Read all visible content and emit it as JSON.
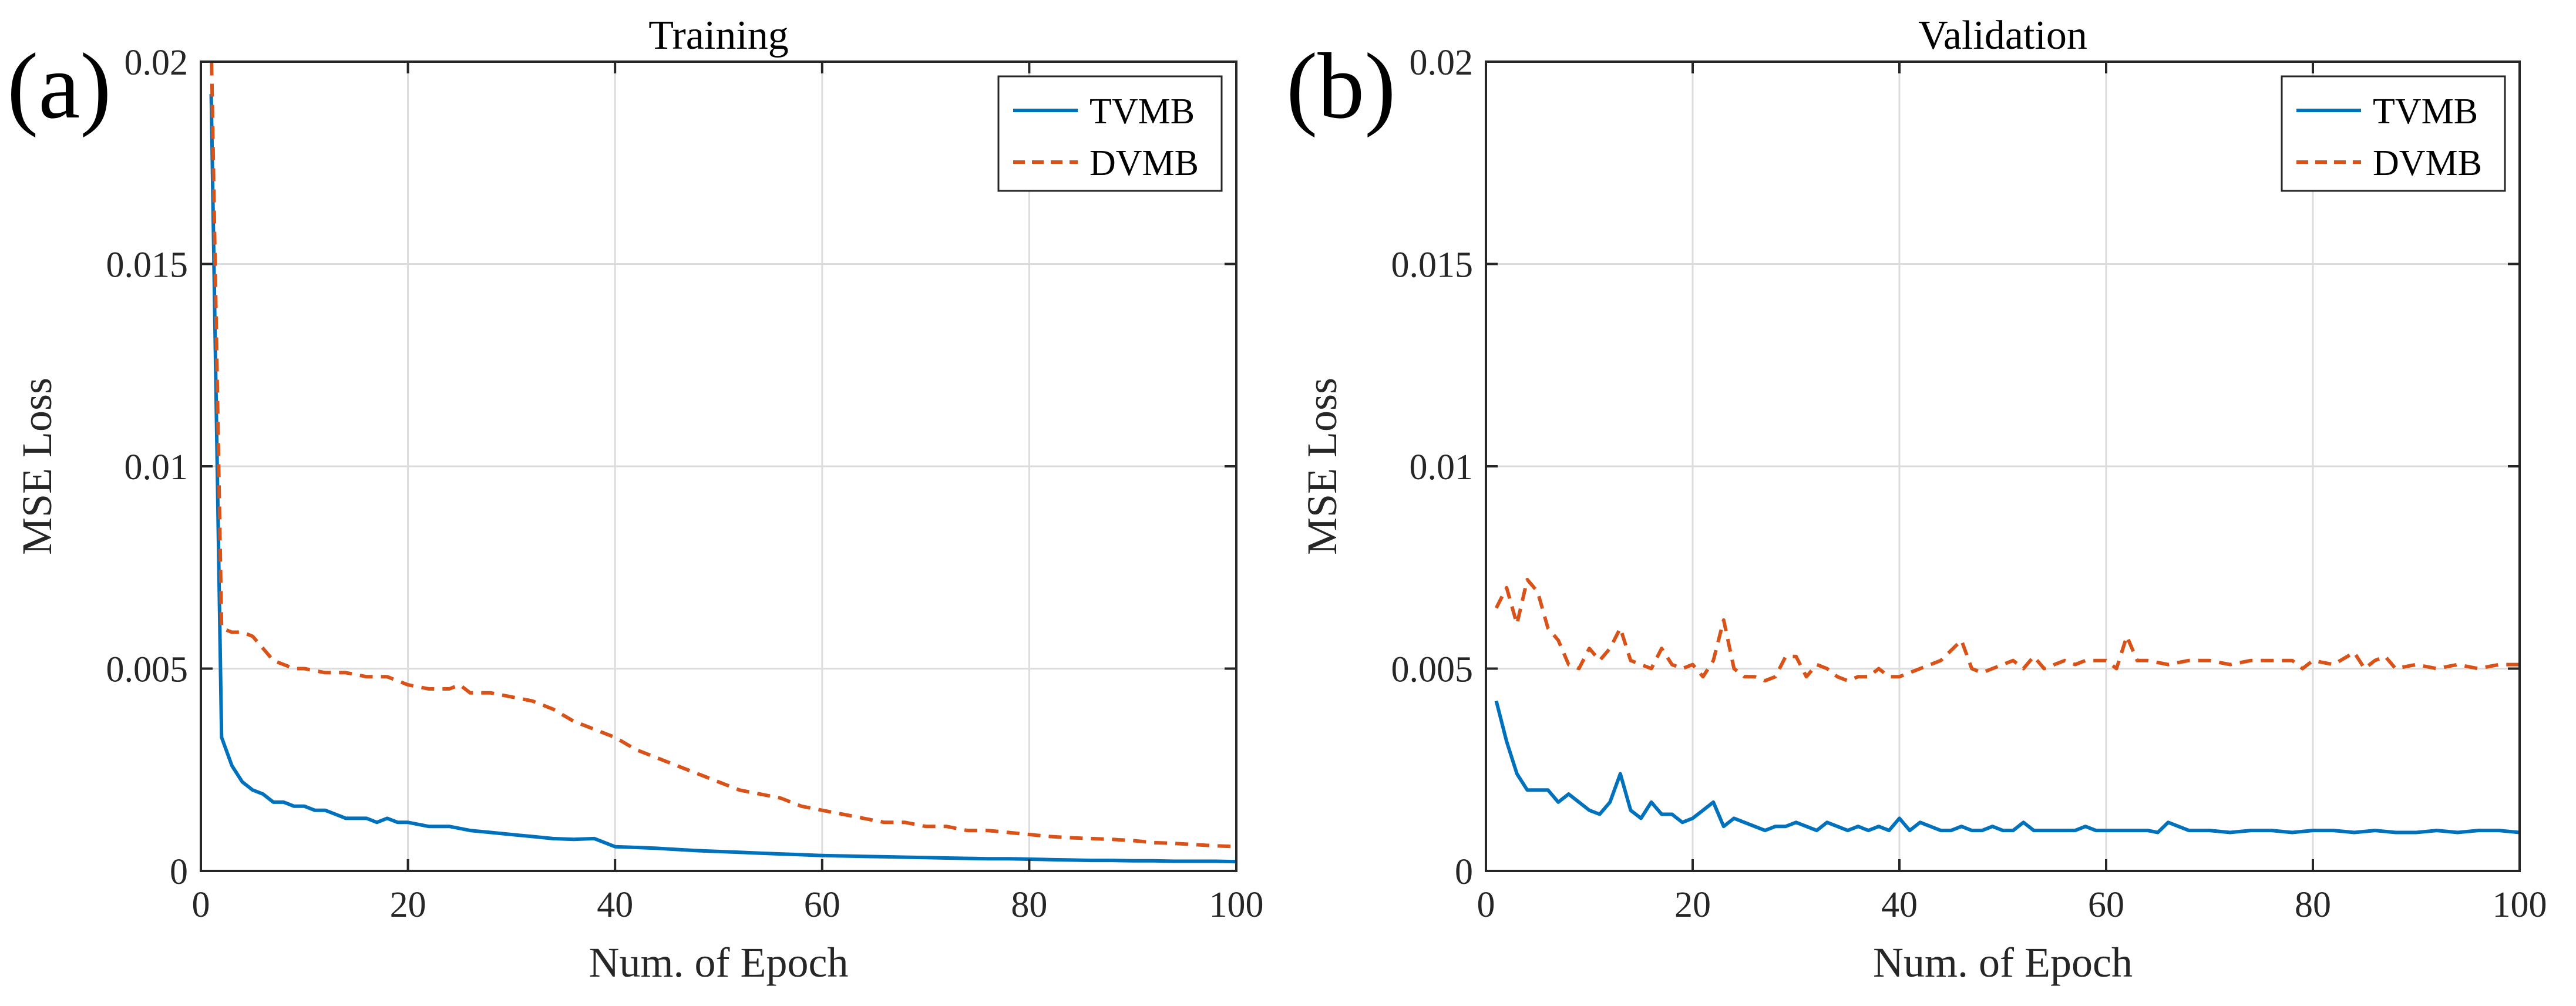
{
  "chart_data": [
    {
      "type": "line",
      "panel_label": "(a)",
      "title": "Training",
      "xlabel": "Num. of Epoch",
      "ylabel": "MSE Loss",
      "xlim": [
        0,
        100
      ],
      "ylim": [
        0,
        0.02
      ],
      "xticks": [
        0,
        20,
        40,
        60,
        80,
        100
      ],
      "xtick_labels": [
        "0",
        "20",
        "40",
        "60",
        "80",
        "100"
      ],
      "yticks": [
        0,
        0.005,
        0.01,
        0.015,
        0.02
      ],
      "ytick_labels": [
        "0",
        "0.005",
        "0.01",
        "0.015",
        "0.02"
      ],
      "grid": true,
      "legend_position": "top-right",
      "series": [
        {
          "name": "TVMB",
          "color": "#0072BD",
          "line_style": "solid",
          "x": [
            1,
            2,
            3,
            4,
            5,
            6,
            7,
            8,
            9,
            10,
            11,
            12,
            13,
            14,
            15,
            16,
            17,
            18,
            19,
            20,
            22,
            24,
            26,
            28,
            30,
            32,
            34,
            36,
            38,
            40,
            42,
            44,
            46,
            48,
            50,
            52,
            54,
            56,
            58,
            60,
            62,
            64,
            66,
            68,
            70,
            72,
            74,
            76,
            78,
            80,
            82,
            84,
            86,
            88,
            90,
            92,
            94,
            96,
            98,
            100
          ],
          "y": [
            0.0192,
            0.0033,
            0.0026,
            0.0022,
            0.002,
            0.0019,
            0.0017,
            0.0017,
            0.0016,
            0.0016,
            0.0015,
            0.0015,
            0.0014,
            0.0013,
            0.0013,
            0.0013,
            0.0012,
            0.0013,
            0.0012,
            0.0012,
            0.0011,
            0.0011,
            0.001,
            0.00095,
            0.0009,
            0.00085,
            0.0008,
            0.00078,
            0.0008,
            0.0006,
            0.00058,
            0.00056,
            0.00053,
            0.0005,
            0.00048,
            0.00046,
            0.00044,
            0.00042,
            0.0004,
            0.00038,
            0.00037,
            0.00036,
            0.00035,
            0.00034,
            0.00033,
            0.00032,
            0.00031,
            0.0003,
            0.0003,
            0.00029,
            0.00028,
            0.00027,
            0.00026,
            0.00026,
            0.00025,
            0.00025,
            0.00024,
            0.00024,
            0.00024,
            0.00023
          ]
        },
        {
          "name": "DVMB",
          "color": "#D95319",
          "line_style": "dashed",
          "x": [
            1,
            2,
            3,
            4,
            5,
            6,
            7,
            8,
            9,
            10,
            12,
            14,
            16,
            18,
            20,
            22,
            24,
            25,
            26,
            28,
            30,
            32,
            34,
            36,
            38,
            40,
            42,
            44,
            46,
            48,
            50,
            52,
            54,
            56,
            58,
            60,
            62,
            64,
            66,
            68,
            70,
            72,
            74,
            76,
            78,
            80,
            82,
            84,
            86,
            88,
            90,
            92,
            94,
            96,
            98,
            100
          ],
          "y": [
            0.0205,
            0.006,
            0.0059,
            0.0059,
            0.0058,
            0.0055,
            0.0052,
            0.0051,
            0.005,
            0.005,
            0.0049,
            0.0049,
            0.0048,
            0.0048,
            0.0046,
            0.0045,
            0.0045,
            0.0046,
            0.0044,
            0.0044,
            0.0043,
            0.0042,
            0.004,
            0.0037,
            0.0035,
            0.0033,
            0.003,
            0.0028,
            0.0026,
            0.0024,
            0.0022,
            0.002,
            0.0019,
            0.0018,
            0.0016,
            0.0015,
            0.0014,
            0.0013,
            0.0012,
            0.0012,
            0.0011,
            0.0011,
            0.001,
            0.001,
            0.00095,
            0.0009,
            0.00085,
            0.00082,
            0.0008,
            0.00078,
            0.00075,
            0.0007,
            0.00068,
            0.00065,
            0.00062,
            0.0006
          ]
        }
      ]
    },
    {
      "type": "line",
      "panel_label": "(b)",
      "title": "Validation",
      "xlabel": "Num. of Epoch",
      "ylabel": "MSE Loss",
      "xlim": [
        0,
        100
      ],
      "ylim": [
        0,
        0.02
      ],
      "xticks": [
        0,
        20,
        40,
        60,
        80,
        100
      ],
      "xtick_labels": [
        "0",
        "20",
        "40",
        "60",
        "80",
        "100"
      ],
      "yticks": [
        0,
        0.005,
        0.01,
        0.015,
        0.02
      ],
      "ytick_labels": [
        "0",
        "0.005",
        "0.01",
        "0.015",
        "0.02"
      ],
      "grid": true,
      "legend_position": "top-right",
      "series": [
        {
          "name": "TVMB",
          "color": "#0072BD",
          "line_style": "solid",
          "x": [
            1,
            2,
            3,
            4,
            5,
            6,
            7,
            8,
            9,
            10,
            11,
            12,
            13,
            14,
            15,
            16,
            17,
            18,
            19,
            20,
            21,
            22,
            23,
            24,
            25,
            26,
            27,
            28,
            29,
            30,
            31,
            32,
            33,
            34,
            35,
            36,
            37,
            38,
            39,
            40,
            41,
            42,
            43,
            44,
            45,
            46,
            47,
            48,
            49,
            50,
            51,
            52,
            53,
            54,
            55,
            56,
            57,
            58,
            59,
            60,
            62,
            64,
            65,
            66,
            68,
            70,
            72,
            74,
            76,
            78,
            80,
            82,
            84,
            86,
            88,
            90,
            92,
            94,
            96,
            98,
            100
          ],
          "y": [
            0.0042,
            0.0032,
            0.0024,
            0.002,
            0.002,
            0.002,
            0.0017,
            0.0019,
            0.0017,
            0.0015,
            0.0014,
            0.0017,
            0.0024,
            0.0015,
            0.0013,
            0.0017,
            0.0014,
            0.0014,
            0.0012,
            0.0013,
            0.0015,
            0.0017,
            0.0011,
            0.0013,
            0.0012,
            0.0011,
            0.001,
            0.0011,
            0.0011,
            0.0012,
            0.0011,
            0.001,
            0.0012,
            0.0011,
            0.001,
            0.0011,
            0.001,
            0.0011,
            0.001,
            0.0013,
            0.001,
            0.0012,
            0.0011,
            0.001,
            0.001,
            0.0011,
            0.001,
            0.001,
            0.0011,
            0.001,
            0.001,
            0.0012,
            0.001,
            0.001,
            0.001,
            0.001,
            0.001,
            0.0011,
            0.001,
            0.001,
            0.001,
            0.001,
            0.00095,
            0.0012,
            0.001,
            0.001,
            0.00095,
            0.001,
            0.001,
            0.00095,
            0.001,
            0.001,
            0.00095,
            0.001,
            0.00095,
            0.00095,
            0.001,
            0.00095,
            0.001,
            0.001,
            0.00095
          ]
        },
        {
          "name": "DVMB",
          "color": "#D95319",
          "line_style": "dashed",
          "x": [
            1,
            2,
            3,
            4,
            5,
            6,
            7,
            8,
            9,
            10,
            11,
            12,
            13,
            14,
            15,
            16,
            17,
            18,
            19,
            20,
            21,
            22,
            23,
            24,
            25,
            26,
            27,
            28,
            29,
            30,
            31,
            32,
            33,
            34,
            35,
            36,
            37,
            38,
            39,
            40,
            42,
            44,
            46,
            47,
            48,
            50,
            51,
            52,
            53,
            54,
            55,
            56,
            57,
            58,
            60,
            61,
            62,
            63,
            64,
            66,
            68,
            70,
            72,
            74,
            76,
            78,
            79,
            80,
            82,
            84,
            85,
            86,
            87,
            88,
            90,
            92,
            94,
            96,
            98,
            100
          ],
          "y": [
            0.0065,
            0.007,
            0.0061,
            0.0072,
            0.0069,
            0.006,
            0.0057,
            0.0051,
            0.005,
            0.0055,
            0.0052,
            0.0055,
            0.006,
            0.0052,
            0.0051,
            0.005,
            0.0055,
            0.0051,
            0.005,
            0.0051,
            0.0048,
            0.0052,
            0.0062,
            0.005,
            0.0048,
            0.0048,
            0.0047,
            0.0048,
            0.0053,
            0.0053,
            0.0048,
            0.0051,
            0.005,
            0.0048,
            0.0047,
            0.0048,
            0.0048,
            0.005,
            0.0048,
            0.0048,
            0.005,
            0.0052,
            0.0057,
            0.005,
            0.0049,
            0.0051,
            0.0052,
            0.005,
            0.0053,
            0.005,
            0.0051,
            0.0052,
            0.0051,
            0.0052,
            0.0052,
            0.005,
            0.0058,
            0.0052,
            0.0052,
            0.0051,
            0.0052,
            0.0052,
            0.0051,
            0.0052,
            0.0052,
            0.0052,
            0.005,
            0.0052,
            0.0051,
            0.0054,
            0.005,
            0.0052,
            0.0053,
            0.005,
            0.0051,
            0.005,
            0.0051,
            0.005,
            0.0051,
            0.0051
          ]
        }
      ]
    }
  ]
}
